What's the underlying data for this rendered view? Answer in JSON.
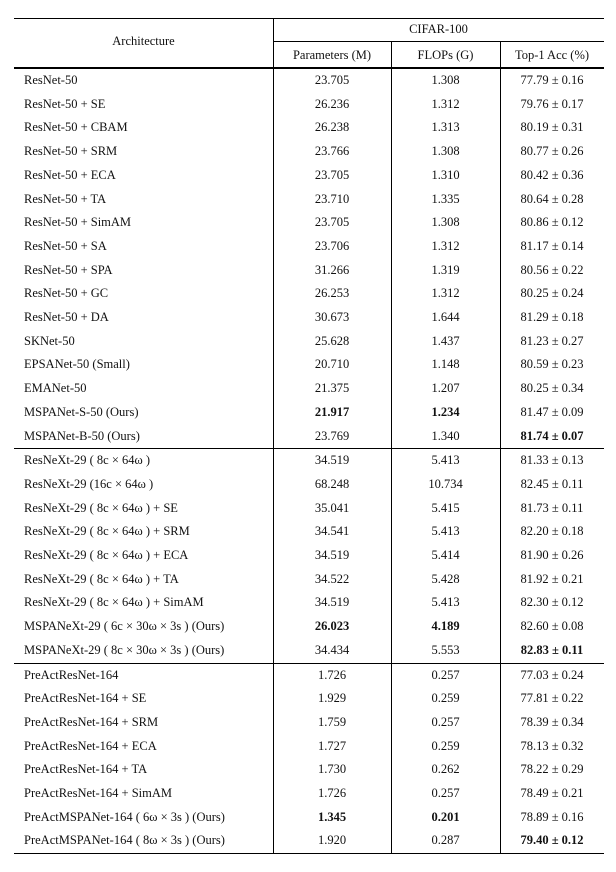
{
  "header": {
    "architecture": "Architecture",
    "dataset": "CIFAR-100",
    "params": "Parameters (M)",
    "flops": "FLOPs (G)",
    "top1": "Top-1 Acc (%)"
  },
  "groups": [
    {
      "rows": [
        {
          "arch": "ResNet-50",
          "params": "23.705",
          "flops": "1.308",
          "acc": "77.79 ± 0.16",
          "bold": []
        },
        {
          "arch": "ResNet-50 + SE",
          "params": "26.236",
          "flops": "1.312",
          "acc": "79.76 ± 0.17",
          "bold": []
        },
        {
          "arch": "ResNet-50 + CBAM",
          "params": "26.238",
          "flops": "1.313",
          "acc": "80.19 ± 0.31",
          "bold": []
        },
        {
          "arch": "ResNet-50 + SRM",
          "params": "23.766",
          "flops": "1.308",
          "acc": "80.77 ± 0.26",
          "bold": []
        },
        {
          "arch": "ResNet-50 + ECA",
          "params": "23.705",
          "flops": "1.310",
          "acc": "80.42 ± 0.36",
          "bold": []
        },
        {
          "arch": "ResNet-50 + TA",
          "params": "23.710",
          "flops": "1.335",
          "acc": "80.64 ± 0.28",
          "bold": []
        },
        {
          "arch": "ResNet-50 + SimAM",
          "params": "23.705",
          "flops": "1.308",
          "acc": "80.86 ± 0.12",
          "bold": []
        },
        {
          "arch": "ResNet-50 + SA",
          "params": "23.706",
          "flops": "1.312",
          "acc": "81.17 ± 0.14",
          "bold": []
        },
        {
          "arch": "ResNet-50 + SPA",
          "params": "31.266",
          "flops": "1.319",
          "acc": "80.56 ± 0.22",
          "bold": []
        },
        {
          "arch": "ResNet-50 + GC",
          "params": "26.253",
          "flops": "1.312",
          "acc": "80.25 ± 0.24",
          "bold": []
        },
        {
          "arch": "ResNet-50 + DA",
          "params": "30.673",
          "flops": "1.644",
          "acc": "81.29 ± 0.18",
          "bold": []
        },
        {
          "arch": "SKNet-50",
          "params": "25.628",
          "flops": "1.437",
          "acc": "81.23 ± 0.27",
          "bold": []
        },
        {
          "arch": "EPSANet-50 (Small)",
          "params": "20.710",
          "flops": "1.148",
          "acc": "80.59 ± 0.23",
          "bold": []
        },
        {
          "arch": "EMANet-50",
          "params": "21.375",
          "flops": "1.207",
          "acc": "80.25 ± 0.34",
          "bold": []
        },
        {
          "arch": "MSPANet-S-50 (Ours)",
          "params": "21.917",
          "flops": "1.234",
          "acc": "81.47 ± 0.09",
          "bold": [
            "params",
            "flops"
          ]
        },
        {
          "arch": "MSPANet-B-50 (Ours)",
          "params": "23.769",
          "flops": "1.340",
          "acc": "81.74 ± 0.07",
          "bold": [
            "acc"
          ]
        }
      ]
    },
    {
      "rows": [
        {
          "arch": "ResNeXt-29 ( 8c × 64ω )",
          "params": "34.519",
          "flops": "5.413",
          "acc": "81.33 ± 0.13",
          "bold": []
        },
        {
          "arch": "ResNeXt-29 (16c × 64ω )",
          "params": "68.248",
          "flops": "10.734",
          "acc": "82.45 ± 0.11",
          "bold": []
        },
        {
          "arch": "ResNeXt-29 ( 8c × 64ω ) + SE",
          "params": "35.041",
          "flops": "5.415",
          "acc": "81.73 ± 0.11",
          "bold": []
        },
        {
          "arch": "ResNeXt-29 ( 8c × 64ω ) + SRM",
          "params": "34.541",
          "flops": "5.413",
          "acc": "82.20 ± 0.18",
          "bold": []
        },
        {
          "arch": "ResNeXt-29 ( 8c × 64ω ) + ECA",
          "params": "34.519",
          "flops": "5.414",
          "acc": "81.90 ± 0.26",
          "bold": []
        },
        {
          "arch": "ResNeXt-29 ( 8c × 64ω ) + TA",
          "params": "34.522",
          "flops": "5.428",
          "acc": "81.92 ± 0.21",
          "bold": []
        },
        {
          "arch": "ResNeXt-29 ( 8c × 64ω ) + SimAM",
          "params": "34.519",
          "flops": "5.413",
          "acc": "82.30 ± 0.12",
          "bold": []
        },
        {
          "arch": "MSPANeXt-29 ( 6c × 30ω × 3s ) (Ours)",
          "params": "26.023",
          "flops": "4.189",
          "acc": "82.60 ± 0.08",
          "bold": [
            "params",
            "flops"
          ]
        },
        {
          "arch": "MSPANeXt-29 ( 8c × 30ω × 3s ) (Ours)",
          "params": "34.434",
          "flops": "5.553",
          "acc": "82.83 ± 0.11",
          "bold": [
            "acc"
          ]
        }
      ]
    },
    {
      "rows": [
        {
          "arch": "PreActResNet-164",
          "params": "1.726",
          "flops": "0.257",
          "acc": "77.03 ± 0.24",
          "bold": []
        },
        {
          "arch": "PreActResNet-164 + SE",
          "params": "1.929",
          "flops": "0.259",
          "acc": "77.81 ± 0.22",
          "bold": []
        },
        {
          "arch": "PreActResNet-164 + SRM",
          "params": "1.759",
          "flops": "0.257",
          "acc": "78.39 ± 0.34",
          "bold": []
        },
        {
          "arch": "PreActResNet-164 + ECA",
          "params": "1.727",
          "flops": "0.259",
          "acc": "78.13 ± 0.32",
          "bold": []
        },
        {
          "arch": "PreActResNet-164 + TA",
          "params": "1.730",
          "flops": "0.262",
          "acc": "78.22 ± 0.29",
          "bold": []
        },
        {
          "arch": "PreActResNet-164 + SimAM",
          "params": "1.726",
          "flops": "0.257",
          "acc": "78.49 ± 0.21",
          "bold": []
        },
        {
          "arch": "PreActMSPANet-164 ( 6ω × 3s ) (Ours)",
          "params": "1.345",
          "flops": "0.201",
          "acc": "78.89 ± 0.16",
          "bold": [
            "params",
            "flops"
          ]
        },
        {
          "arch": "PreActMSPANet-164 ( 8ω × 3s ) (Ours)",
          "params": "1.920",
          "flops": "0.287",
          "acc": "79.40 ± 0.12",
          "bold": [
            "acc"
          ]
        }
      ]
    }
  ]
}
